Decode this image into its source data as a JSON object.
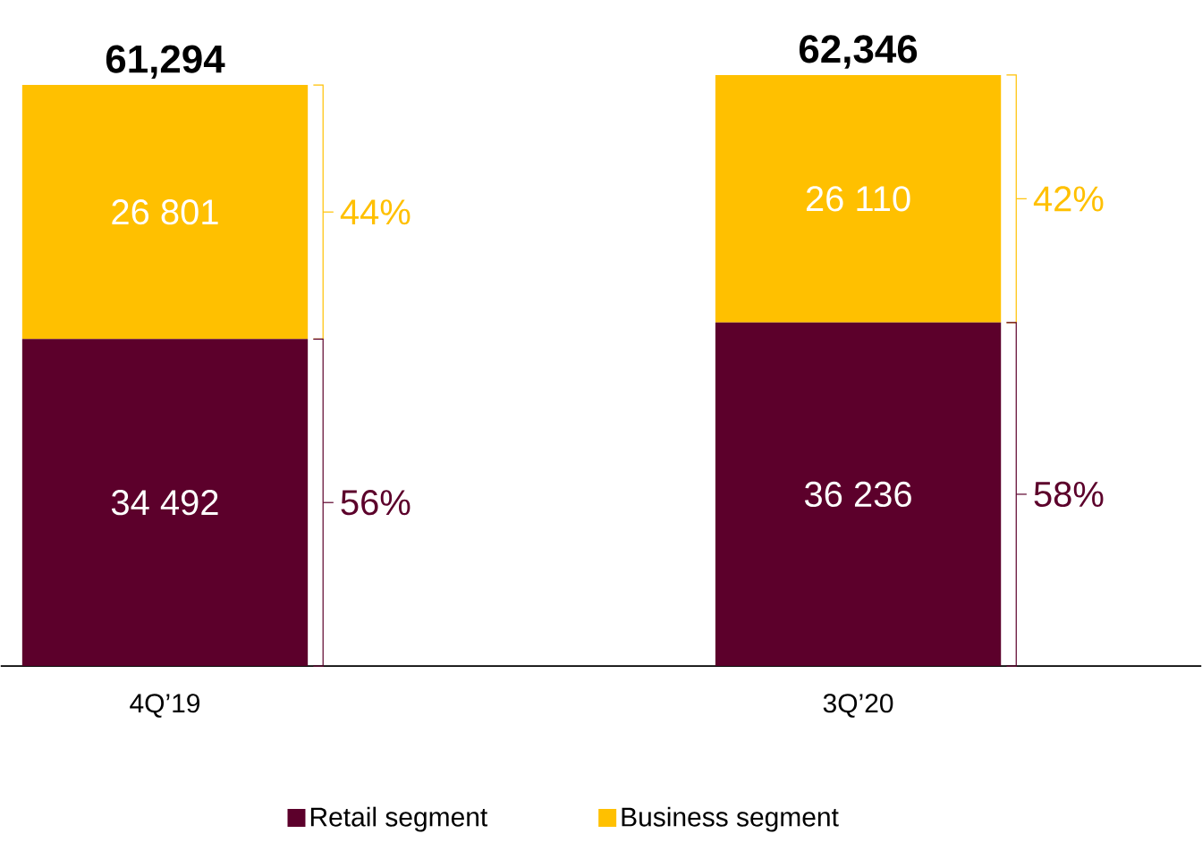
{
  "chart_data": {
    "type": "bar",
    "stacked": true,
    "categories": [
      "4Q’19",
      "3Q’20"
    ],
    "series": [
      {
        "name": "Retail segment",
        "color": "#5c002b",
        "values": [
          34492,
          36236
        ],
        "value_labels": [
          "34 492",
          "36 236"
        ]
      },
      {
        "name": "Business segment",
        "color": "#ffc000",
        "values": [
          26801,
          26110
        ],
        "value_labels": [
          "26 801",
          "26 110"
        ]
      }
    ],
    "totals": [
      "61,294",
      "62,346"
    ],
    "annotations": [
      "56%",
      "44%",
      "58%",
      "42%"
    ],
    "legend": "bottom"
  }
}
